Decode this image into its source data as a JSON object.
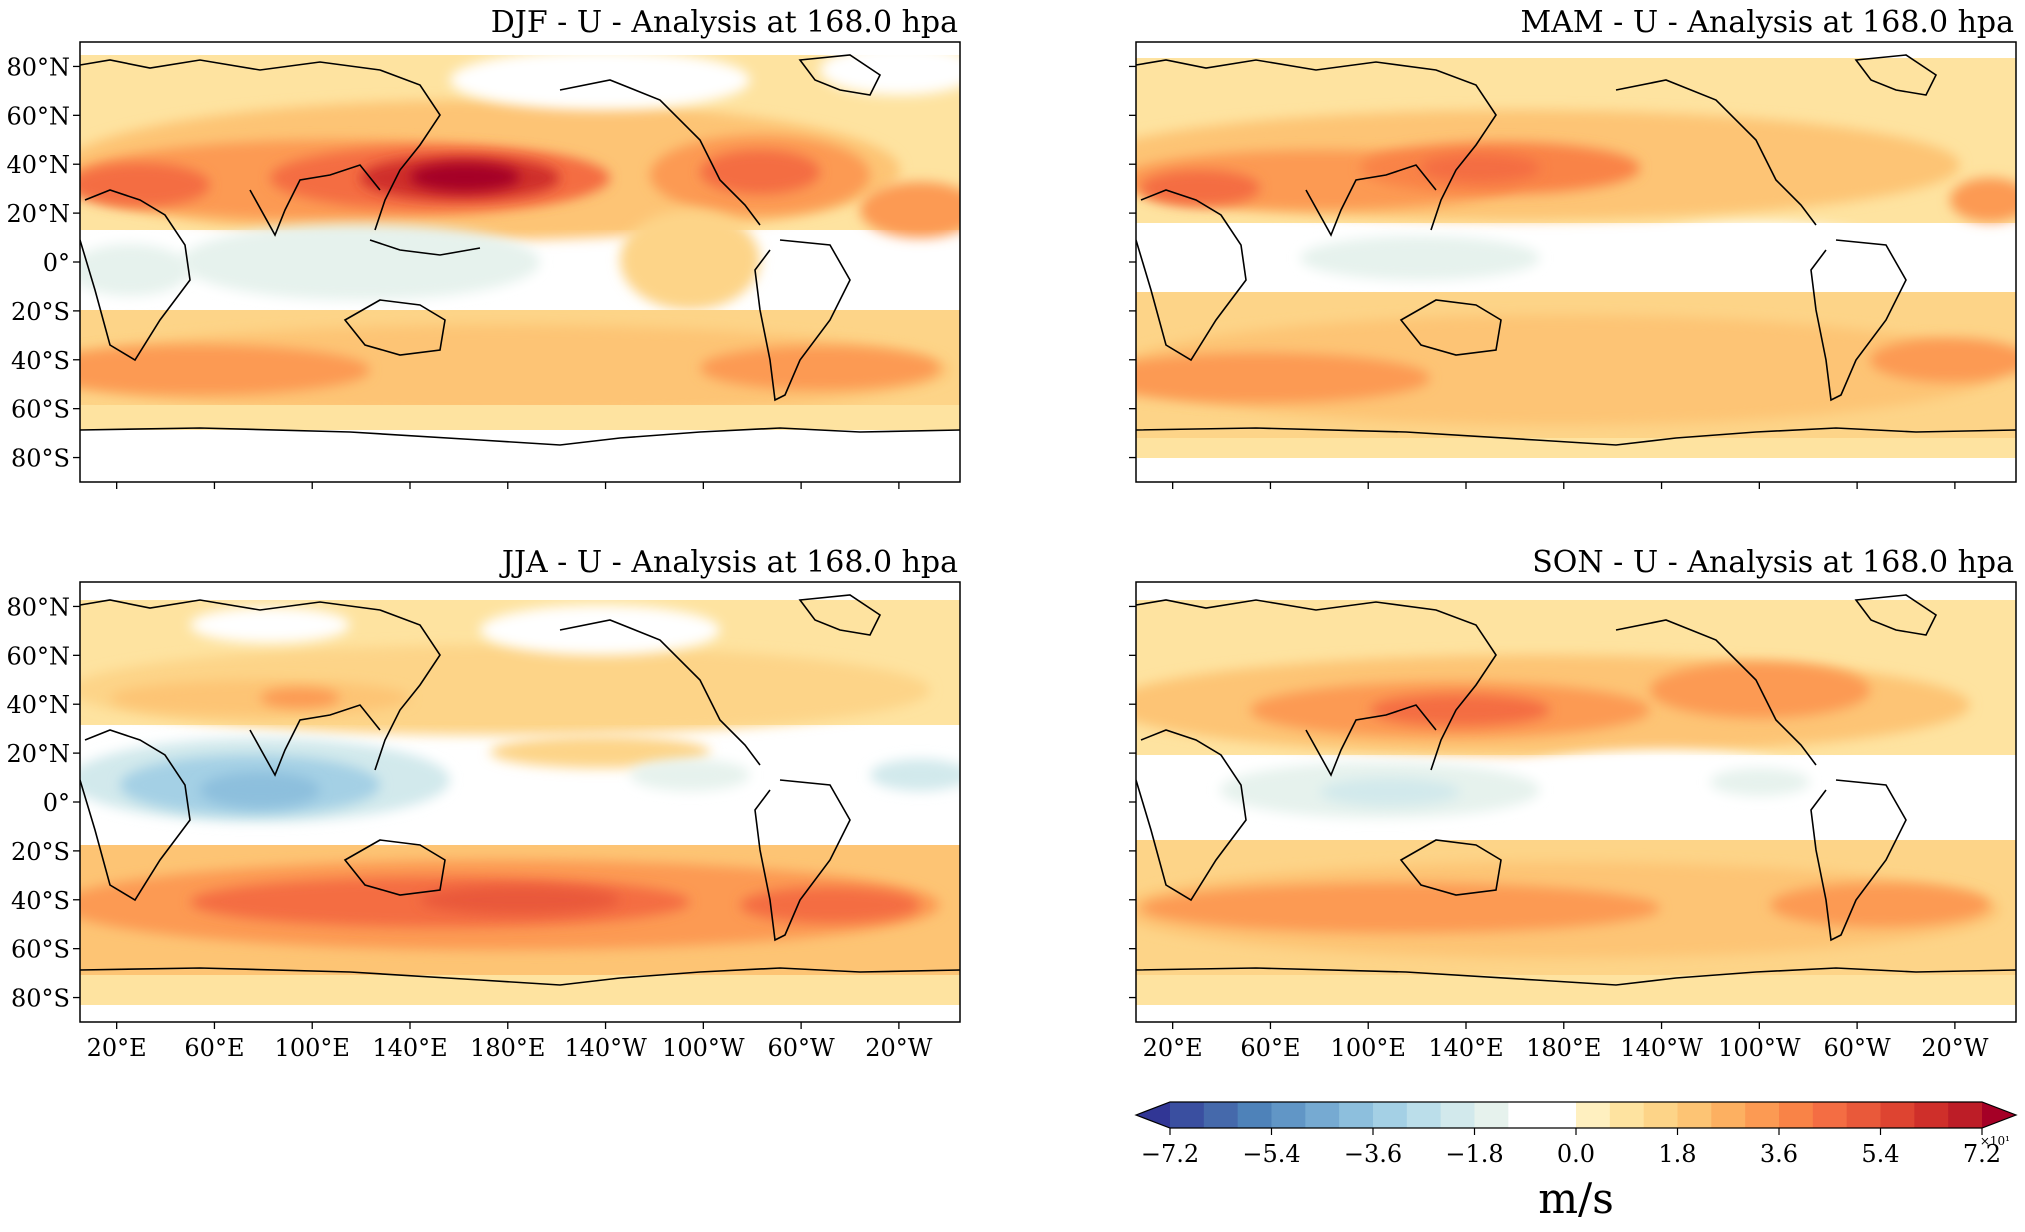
{
  "panels": [
    {
      "title": "DJF - U - Analysis at 168.0 hpa",
      "season": "DJF"
    },
    {
      "title": "MAM - U - Analysis at 168.0 hpa",
      "season": "MAM"
    },
    {
      "title": "JJA - U - Analysis at 168.0 hpa",
      "season": "JJA"
    },
    {
      "title": "SON - U - Analysis at 168.0 hpa",
      "season": "SON"
    }
  ],
  "lat_ticks": [
    "80°N",
    "60°N",
    "40°N",
    "20°N",
    "0°",
    "20°S",
    "40°S",
    "60°S",
    "80°S"
  ],
  "lon_ticks": [
    "20°E",
    "60°E",
    "100°E",
    "140°E",
    "180°E",
    "140°W",
    "100°W",
    "60°W",
    "20°W"
  ],
  "colorbar": {
    "tick_labels": [
      "−7.2",
      "−5.4",
      "−3.6",
      "−1.8",
      "0.0",
      "1.8",
      "3.6",
      "5.4",
      "7.2"
    ],
    "multiplier": "×10¹",
    "unit": "m/s",
    "levels_negative": 16,
    "levels_positive": 16,
    "colors": [
      "#313695",
      "#3a4fa0",
      "#4569ab",
      "#4e82b9",
      "#6196c6",
      "#76aad2",
      "#8dbfdd",
      "#a4d0e5",
      "#bbdeea",
      "#d2e9ec",
      "#e6f2ed",
      "#ffffff",
      "#ffffff",
      "#fff0c0",
      "#fee3a0",
      "#fdd488",
      "#fdc474",
      "#fdb061",
      "#fc9a53",
      "#f98347",
      "#f46d43",
      "#e9593a",
      "#de4431",
      "#cf2f2a",
      "#bd1d27",
      "#a50026"
    ]
  },
  "map_layers": {
    "field": "zonal wind U at 168 hPa",
    "palette": "RdYlBu_r",
    "projection": "PlateCarree centered 180°",
    "coastlines": true
  }
}
